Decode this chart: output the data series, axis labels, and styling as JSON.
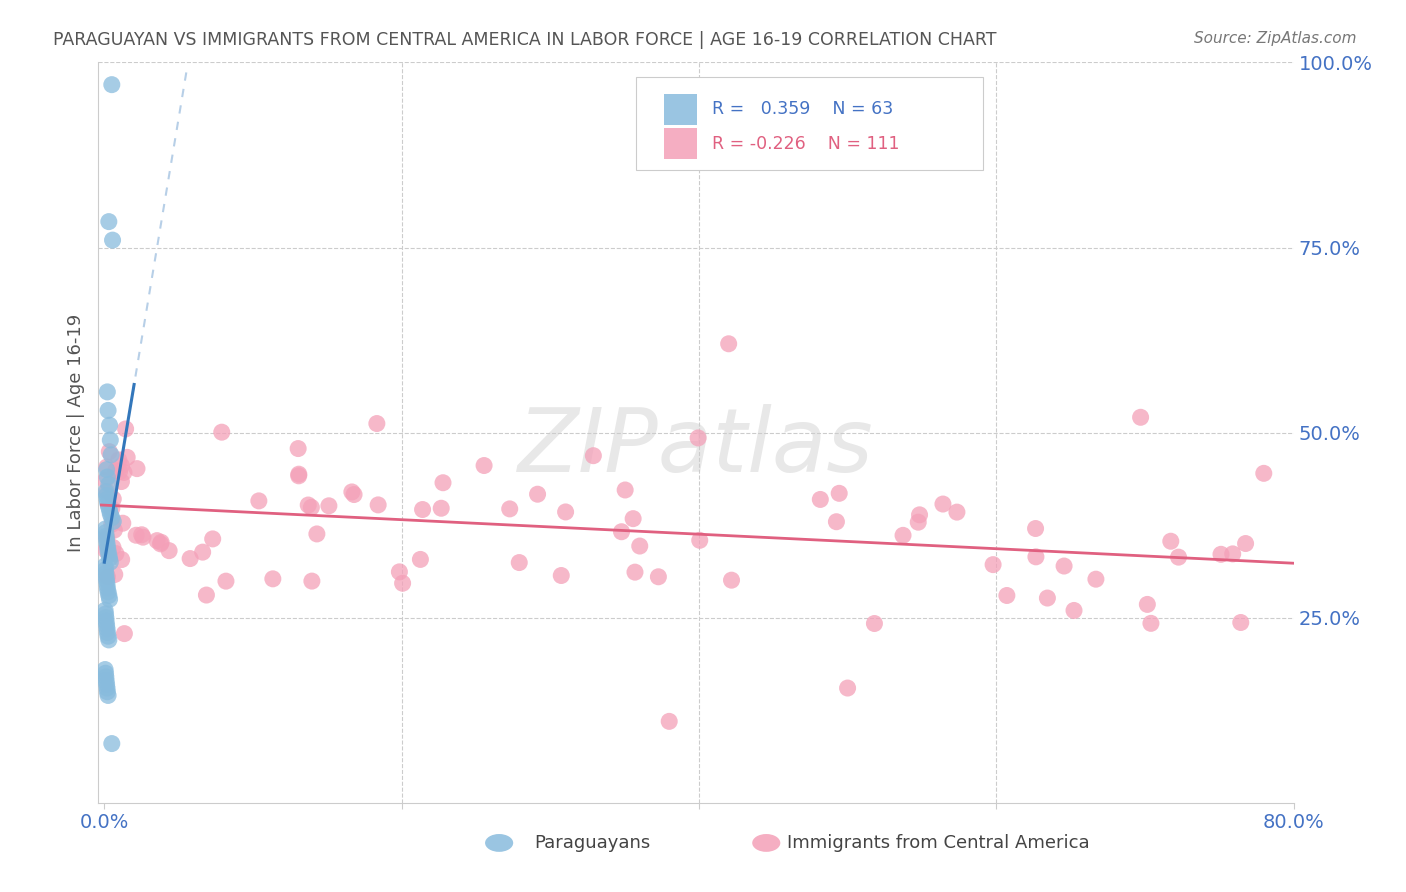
{
  "title": "PARAGUAYAN VS IMMIGRANTS FROM CENTRAL AMERICA IN LABOR FORCE | AGE 16-19 CORRELATION CHART",
  "source": "Source: ZipAtlas.com",
  "ylabel": "In Labor Force | Age 16-19",
  "xlim": [
    -0.004,
    0.8
  ],
  "ylim": [
    0.0,
    1.0
  ],
  "blue_color": "#88bbdd",
  "pink_color": "#f4a0b8",
  "blue_line_color": "#3377bb",
  "pink_line_color": "#e06080",
  "blue_line_dash_color": "#99bbdd",
  "watermark": "ZIPatlas",
  "legend_blue_R": "0.359",
  "legend_blue_N": "63",
  "legend_pink_R": "-0.226",
  "legend_pink_N": "111",
  "background_color": "#ffffff",
  "grid_color": "#cccccc",
  "tick_color": "#4472c4",
  "title_color": "#555555",
  "axis_label_color": "#555555"
}
